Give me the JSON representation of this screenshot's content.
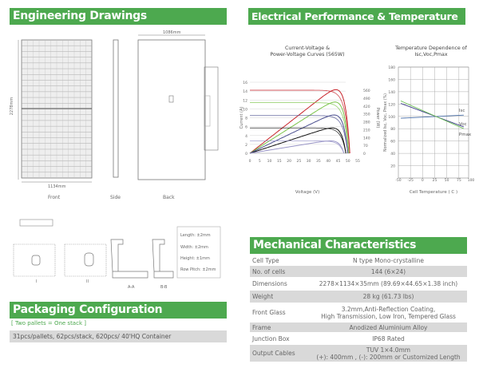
{
  "engineering": {
    "title": "Engineering Drawings",
    "dim_width_back": "1086mm",
    "dim_width_front": "1134mm",
    "dim_height": "2278mm",
    "views": [
      "Front",
      "Side",
      "Back"
    ],
    "details": {
      "labels": [
        "I",
        "II",
        "A-A",
        "B-B"
      ],
      "tolerances": [
        "Length: ±2mm",
        "Width: ±2mm",
        "Height: ±1mm",
        "Row Pitch: ±2mm"
      ]
    }
  },
  "packaging": {
    "title": "Packaging Configuration",
    "note": "[ Two pallets = One stack ]",
    "detail": "31pcs/pallets, 62pcs/stack, 620pcs/ 40'HQ Container"
  },
  "electrical": {
    "title": "Electrical Performance & Temperature Dependence"
  },
  "chart_data": [
    {
      "type": "line",
      "title": "Current-Voltage & Power-Voltage Curves (565W)",
      "xlabel": "Voltage (V)",
      "ylabel": "Current (A)",
      "y2label": "Power (W)",
      "xlim": [
        0,
        55
      ],
      "ylim": [
        0,
        16
      ],
      "y2lim": [
        0,
        560
      ],
      "xticks": [
        0,
        5,
        10,
        15,
        20,
        25,
        30,
        35,
        40,
        45,
        50,
        55
      ],
      "yticks": [
        0,
        2,
        4,
        6,
        8,
        10,
        12,
        14,
        16
      ],
      "y2ticks": [
        0,
        70,
        140,
        210,
        280,
        350,
        420,
        490,
        560
      ],
      "series": [
        {
          "color": "#c8242b",
          "isc": 14.2,
          "voc": 51,
          "pmax": 565
        },
        {
          "color": "#7bc44a",
          "isc": 11.4,
          "voc": 50.5,
          "pmax": 455
        },
        {
          "color": "#4b4f8f",
          "isc": 8.5,
          "voc": 50,
          "pmax": 340
        },
        {
          "color": "#111111",
          "isc": 5.7,
          "voc": 49,
          "pmax": 225
        },
        {
          "color": "#9a96c8",
          "isc": 2.8,
          "voc": 48,
          "pmax": 110
        }
      ],
      "grid": "horizontal"
    },
    {
      "type": "line",
      "title": "Temperature Dependence of Isc,Voc,Pmax",
      "xlabel": "Cell Temperature ( C )",
      "ylabel": "Normalized Isc, Voc, Pmax (%)",
      "xlim": [
        -50,
        100
      ],
      "ylim": [
        0,
        180
      ],
      "xticks": [
        -50,
        -25,
        0,
        25,
        50,
        75,
        100
      ],
      "yticks": [
        20,
        40,
        60,
        80,
        100,
        120,
        140,
        160,
        180
      ],
      "grid": true,
      "series": [
        {
          "name": "Isc",
          "color": "#4a6fa8",
          "x": [
            -45,
            85
          ],
          "y": [
            97,
            102
          ]
        },
        {
          "name": "Voc",
          "color": "#3f3f8a",
          "x": [
            -45,
            85
          ],
          "y": [
            121,
            83
          ]
        },
        {
          "name": "Pmax",
          "color": "#6fbf5a",
          "x": [
            -45,
            85
          ],
          "y": [
            125,
            80
          ]
        }
      ]
    }
  ],
  "mechanical": {
    "title": "Mechanical Characteristics",
    "rows": [
      {
        "k": "Cell  Type",
        "v": "N type Mono-crystalline"
      },
      {
        "k": "No. of cells",
        "v": "144 (6×24)"
      },
      {
        "k": "Dimensions",
        "v": "2278×1134×35mm (89.69×44.65×1.38 inch)"
      },
      {
        "k": "Weight",
        "v": "28 kg (61.73 lbs)"
      },
      {
        "k": "Front Glass",
        "v": "3.2mm,Anti-Reflection Coating,",
        "v2": "High Transmission, Low Iron, Tempered Glass"
      },
      {
        "k": "Frame",
        "v": "Anodized Aluminium Alloy"
      },
      {
        "k": "Junction Box",
        "v": "IP68 Rated"
      },
      {
        "k": "Output Cables",
        "v": "TUV  1×4.0mm",
        "v2": "(+): 400mm , (-): 200mm or Customized Length"
      }
    ]
  }
}
